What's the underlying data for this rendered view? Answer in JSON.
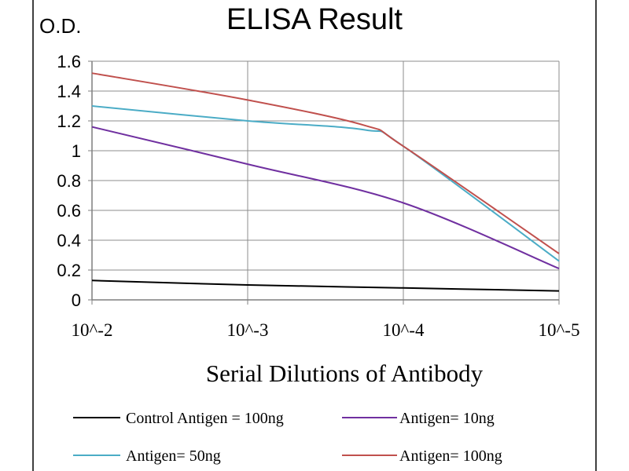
{
  "chart_data": {
    "type": "line",
    "title": "ELISA Result",
    "ylabel": "O.D.",
    "xlabel": "Serial Dilutions  of Antibody",
    "ylim": [
      0,
      1.6
    ],
    "y_ticks": [
      0,
      0.2,
      0.4,
      0.6,
      0.8,
      1,
      1.2,
      1.4,
      1.6
    ],
    "y_tick_labels": [
      "0",
      "0.2",
      "0.4",
      "0.6",
      "0.8",
      "1",
      "1.2",
      "1.4",
      "1.6"
    ],
    "x_tick_labels": [
      "10^-2",
      "10^-3",
      "10^-4",
      "10^-5"
    ],
    "xlim": [
      0,
      3
    ],
    "grid": true,
    "legend_position": "bottom",
    "series": [
      {
        "name": "Control Antigen = 100ng",
        "color": "#000000",
        "x": [
          0,
          1,
          2,
          3
        ],
        "y": [
          0.13,
          0.1,
          0.08,
          0.06
        ]
      },
      {
        "name": "Antigen= 10ng",
        "color": "#7030a0",
        "x": [
          0,
          1,
          2,
          3
        ],
        "y": [
          1.16,
          0.91,
          0.65,
          0.21
        ]
      },
      {
        "name": "Antigen= 50ng",
        "color": "#4bacc6",
        "x": [
          0,
          1,
          1.75,
          2,
          3
        ],
        "y": [
          1.3,
          1.2,
          1.14,
          1.03,
          0.26
        ]
      },
      {
        "name": "Antigen= 100ng",
        "color": "#c0504d",
        "x": [
          0,
          1,
          1.75,
          2,
          3
        ],
        "y": [
          1.52,
          1.34,
          1.17,
          1.03,
          0.31
        ]
      }
    ]
  }
}
